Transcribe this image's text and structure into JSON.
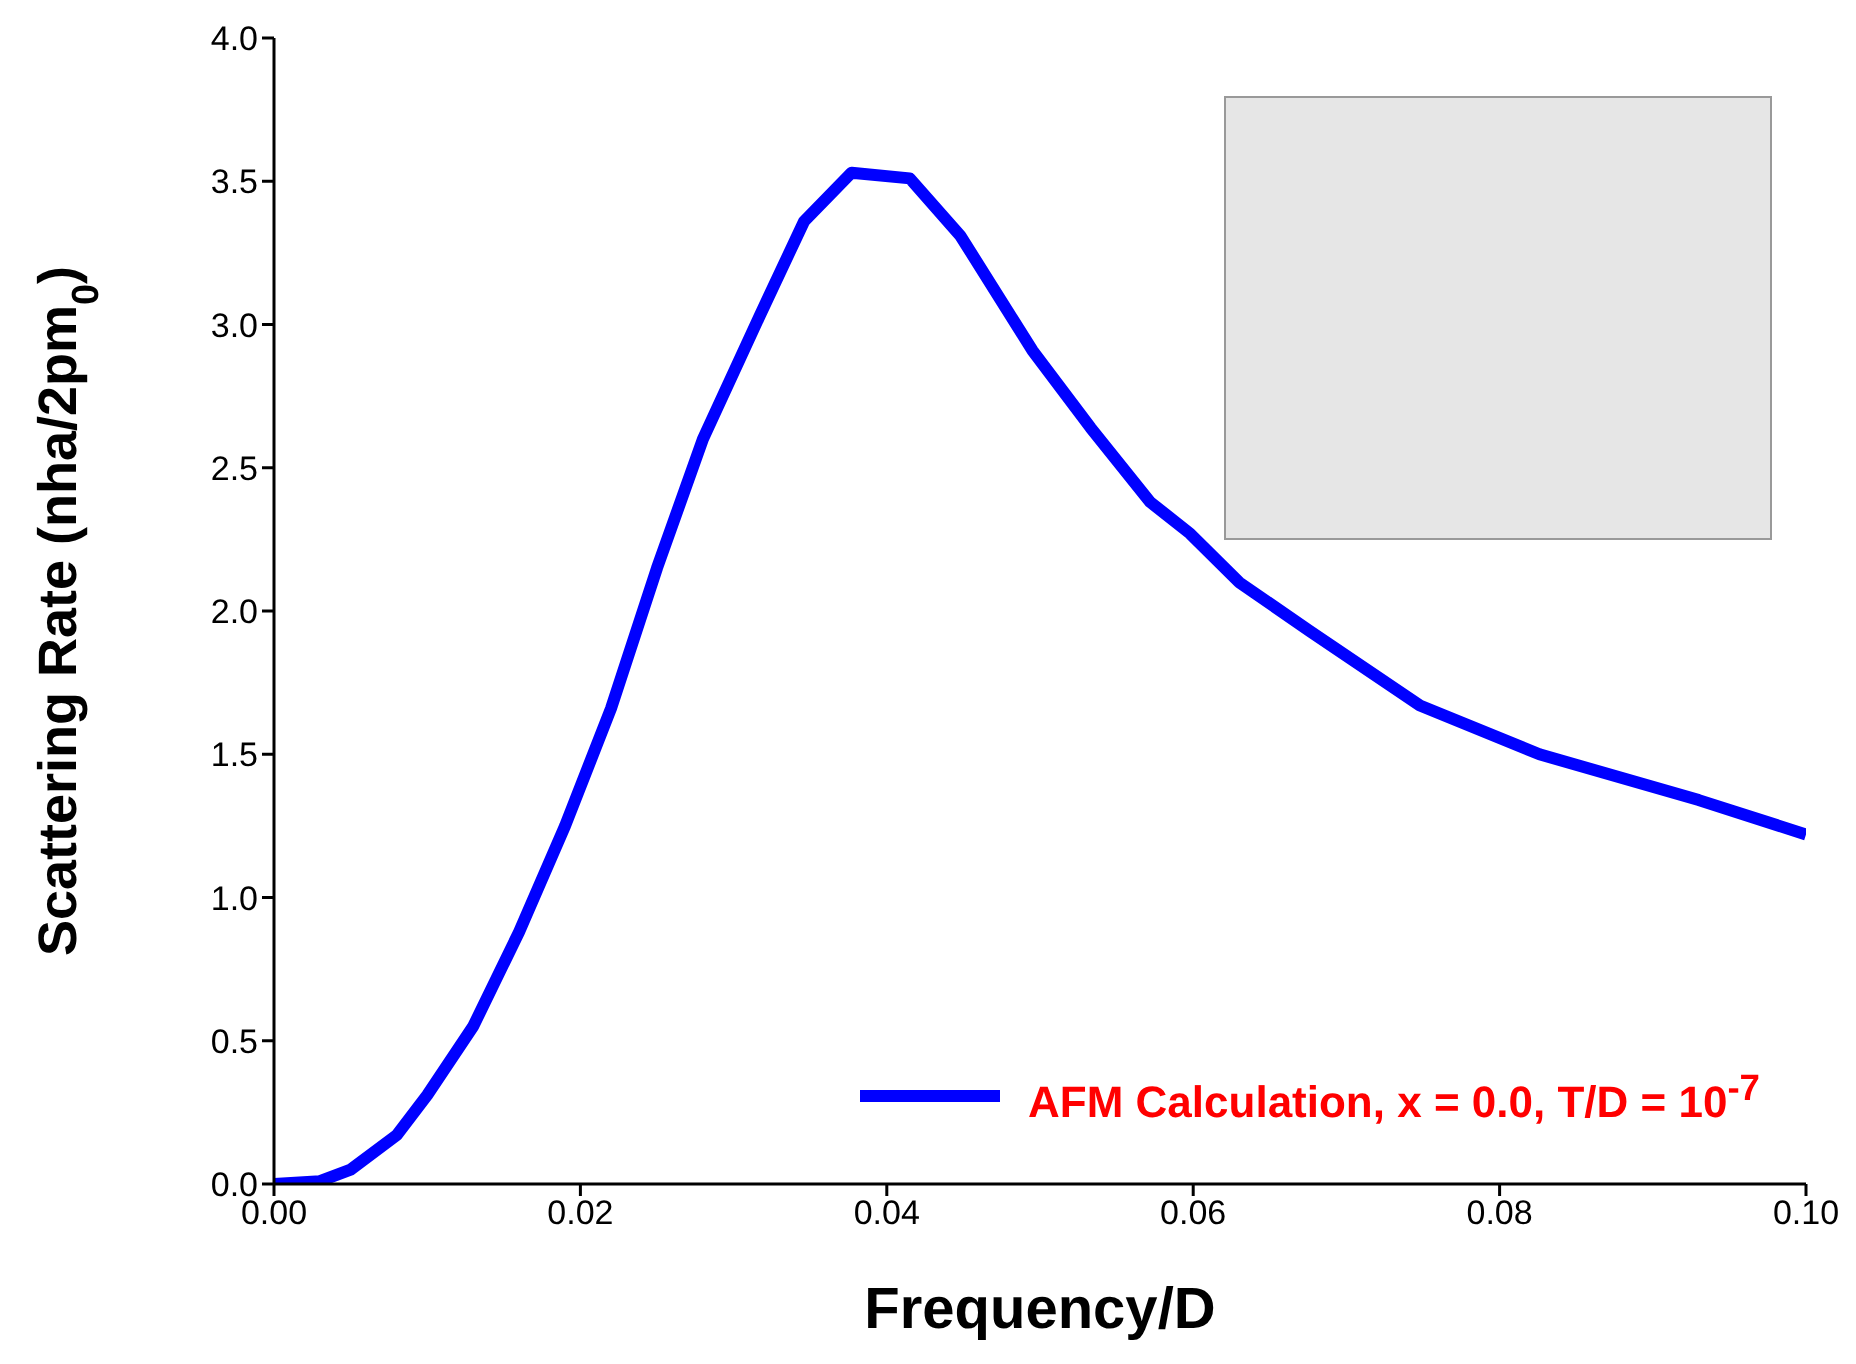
{
  "chart_data": {
    "type": "line",
    "xlabel": "Frequency/D",
    "ylabel": "Scattering Rate (nha/2pm$_{0}$)",
    "x": [
      0,
      0.003,
      0.005,
      0.008,
      0.01,
      0.013,
      0.016,
      0.019,
      0.022,
      0.025,
      0.028,
      0.0317,
      0.0346,
      0.0377,
      0.0415,
      0.0448,
      0.0495,
      0.0533,
      0.0572,
      0.0598,
      0.063,
      0.0676,
      0.0748,
      0.0826,
      0.093,
      0.1
    ],
    "series": [
      {
        "name": "AFM Calculation, x = 0.0, T/D = 10$^{-7}$",
        "color": "#0000ff",
        "values": [
          0,
          0.01,
          0.05,
          0.17,
          0.31,
          0.55,
          0.88,
          1.25,
          1.66,
          2.15,
          2.6,
          3.03,
          3.36,
          3.53,
          3.51,
          3.31,
          2.91,
          2.64,
          2.38,
          2.27,
          2.1,
          1.93,
          1.67,
          1.5,
          1.34,
          1.22
        ]
      }
    ],
    "xlim": [
      0,
      0.1
    ],
    "ylim": [
      0,
      4
    ],
    "xticks": [
      {
        "value": 0,
        "label": "0.00"
      },
      {
        "value": 0.02,
        "label": "0.02"
      },
      {
        "value": 0.04,
        "label": "0.04"
      },
      {
        "value": 0.06,
        "label": "0.06"
      },
      {
        "value": 0.08,
        "label": "0.08"
      },
      {
        "value": 0.1,
        "label": "0.10"
      }
    ],
    "yticks": [
      {
        "value": 0,
        "label": "0.0"
      },
      {
        "value": 0.5,
        "label": "0.5"
      },
      {
        "value": 1,
        "label": "1.0"
      },
      {
        "value": 1.5,
        "label": "1.5"
      },
      {
        "value": 2,
        "label": "2.0"
      },
      {
        "value": 2.5,
        "label": "2.5"
      },
      {
        "value": 3,
        "label": "3.0"
      },
      {
        "value": 3.5,
        "label": "3.5"
      },
      {
        "value": 4,
        "label": "4.0"
      }
    ],
    "legend": "bottom right",
    "grid": false,
    "marker": "none",
    "line_style": "solid"
  }
}
